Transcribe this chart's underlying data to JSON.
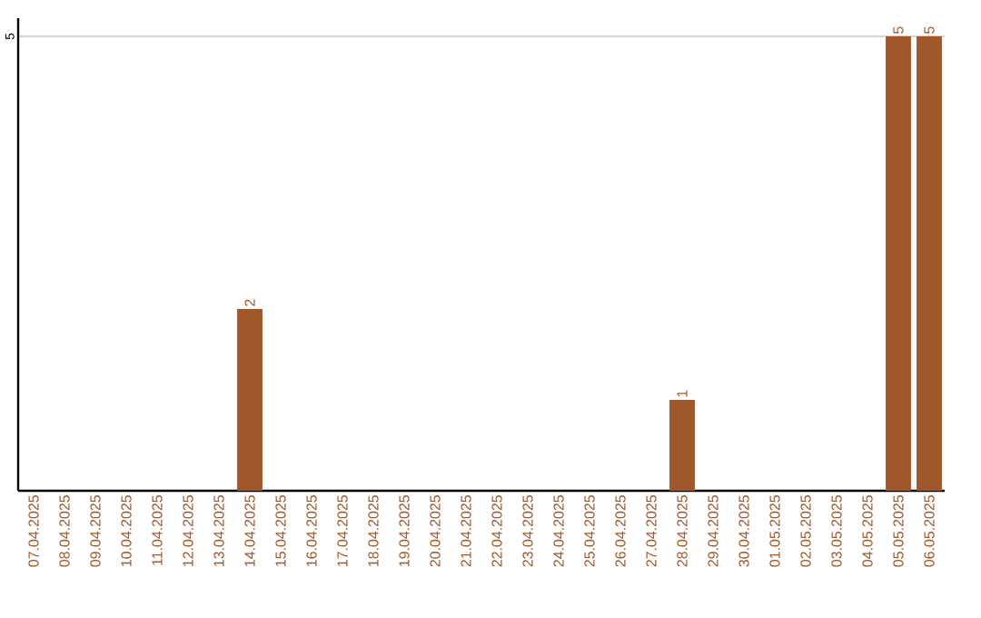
{
  "chart_data": {
    "type": "bar",
    "categories": [
      "07.04.2025",
      "08.04.2025",
      "09.04.2025",
      "10.04.2025",
      "11.04.2025",
      "12.04.2025",
      "13.04.2025",
      "14.04.2025",
      "15.04.2025",
      "16.04.2025",
      "17.04.2025",
      "18.04.2025",
      "19.04.2025",
      "20.04.2025",
      "21.04.2025",
      "22.04.2025",
      "23.04.2025",
      "24.04.2025",
      "25.04.2025",
      "26.04.2025",
      "27.04.2025",
      "28.04.2025",
      "29.04.2025",
      "30.04.2025",
      "01.05.2025",
      "02.05.2025",
      "03.05.2025",
      "04.05.2025",
      "05.05.2025",
      "06.05.2025"
    ],
    "values": [
      0,
      0,
      0,
      0,
      0,
      0,
      0,
      2,
      0,
      0,
      0,
      0,
      0,
      0,
      0,
      0,
      0,
      0,
      0,
      0,
      0,
      1,
      0,
      0,
      0,
      0,
      0,
      0,
      5,
      5
    ],
    "value_labels": [
      null,
      null,
      null,
      null,
      null,
      null,
      null,
      "2",
      null,
      null,
      null,
      null,
      null,
      null,
      null,
      null,
      null,
      null,
      null,
      null,
      null,
      "1",
      null,
      null,
      null,
      null,
      null,
      null,
      "5",
      "5"
    ],
    "color": "#a0582a",
    "ylim": [
      0,
      5.2
    ],
    "yticks": [
      5
    ],
    "grid": "y"
  }
}
